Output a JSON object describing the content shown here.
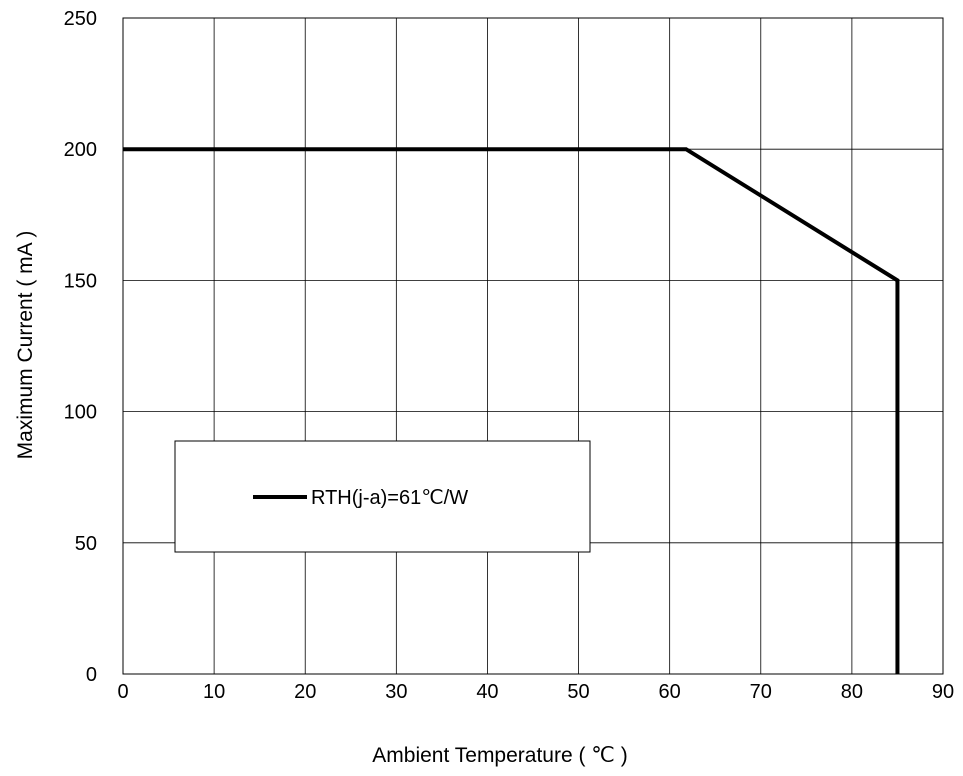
{
  "chart_data": {
    "type": "line",
    "xlabel": "Ambient Temperature ( ℃ )",
    "ylabel": "Maximum Current ( mA )",
    "xlim": [
      0,
      90
    ],
    "ylim": [
      0,
      250
    ],
    "xticks": [
      0,
      10,
      20,
      30,
      40,
      50,
      60,
      70,
      80,
      90
    ],
    "yticks": [
      0,
      50,
      100,
      150,
      200,
      250
    ],
    "grid": true,
    "legend_position": "left-center",
    "series": [
      {
        "name": "RTH(j-a)=61℃/W",
        "color": "#000000",
        "x": [
          0,
          61.8,
          85,
          85
        ],
        "y": [
          200,
          200,
          150,
          0
        ]
      }
    ]
  }
}
